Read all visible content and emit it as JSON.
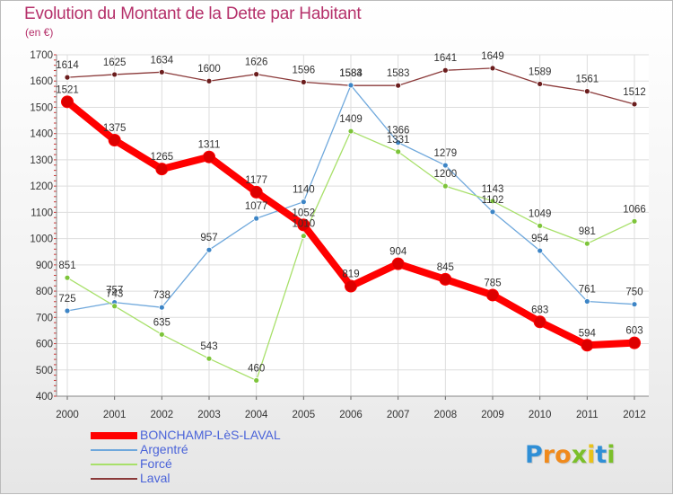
{
  "header": {
    "title": "Evolution du Montant de la Dette par Habitant",
    "subtitle": "(en €)"
  },
  "chart_data": {
    "type": "line",
    "title": "Evolution du Montant de la Dette par Habitant",
    "ylabel": "(en €)",
    "xlabel": "",
    "x": [
      "2000",
      "2001",
      "2002",
      "2003",
      "2004",
      "2005",
      "2006",
      "2007",
      "2008",
      "2009",
      "2010",
      "2011",
      "2012"
    ],
    "ylim": [
      400,
      1700
    ],
    "yticks": [
      400,
      500,
      600,
      700,
      800,
      900,
      1000,
      1100,
      1200,
      1300,
      1400,
      1500,
      1600,
      1700
    ],
    "grid": true,
    "legend_position": "bottom-left",
    "series": [
      {
        "name": "BONCHAMP-LèS-LAVAL",
        "color": "#ff0000",
        "width": 8,
        "marker_color": "#dd0000",
        "values": [
          1521,
          1375,
          1265,
          1311,
          1177,
          1052,
          819,
          904,
          845,
          785,
          683,
          594,
          603
        ]
      },
      {
        "name": "Argentré",
        "color": "#6fa8dc",
        "width": 1.3,
        "marker_color": "#3d85c6",
        "values": [
          725,
          757,
          738,
          957,
          1077,
          1140,
          1584,
          1366,
          1279,
          1102,
          954,
          761,
          750
        ]
      },
      {
        "name": "Forcé",
        "color": "#a8e06a",
        "width": 1.3,
        "marker_color": "#7dc43a",
        "values": [
          851,
          743,
          635,
          543,
          460,
          1010,
          1409,
          1331,
          1200,
          1143,
          1049,
          981,
          1066
        ]
      },
      {
        "name": "Laval",
        "color": "#8b3a3a",
        "width": 1.3,
        "marker_color": "#6b1d1d",
        "values": [
          1614,
          1625,
          1634,
          1600,
          1626,
          1596,
          1583,
          1583,
          1641,
          1649,
          1589,
          1561,
          1512
        ]
      }
    ]
  },
  "brand": {
    "letters": [
      {
        "ch": "P",
        "color": "#2f8fd6"
      },
      {
        "ch": "r",
        "color": "#f08a1c"
      },
      {
        "ch": "o",
        "color": "#f08a1c"
      },
      {
        "ch": "x",
        "color": "#7bbf2a"
      },
      {
        "ch": "i",
        "color": "#e8c21a"
      },
      {
        "ch": "t",
        "color": "#2f8fd6"
      },
      {
        "ch": "i",
        "color": "#7bbf2a"
      }
    ]
  }
}
